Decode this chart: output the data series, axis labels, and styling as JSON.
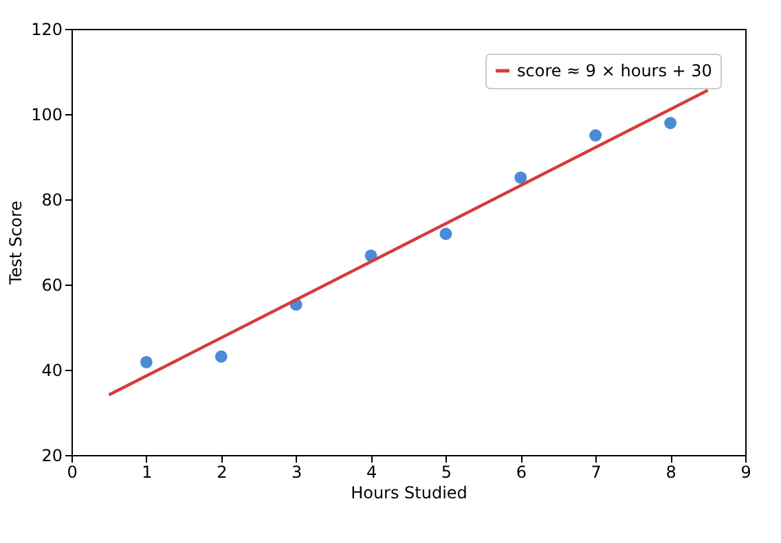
{
  "chart_data": {
    "type": "scatter",
    "xlabel": "Hours Studied",
    "ylabel": "Test Score",
    "series": [
      {
        "color": "#4a8ad6",
        "x": [
          1,
          2,
          3,
          4,
          5,
          6,
          7,
          8
        ],
        "values": [
          41.8,
          43.1,
          55.3,
          66.8,
          71.9,
          85.1,
          95,
          97.9
        ],
        "marker": "circle"
      },
      {
        "type": "line",
        "name": "score ≈ 9 × hours + 30",
        "color": "#d63b3b",
        "x": [
          0.5,
          8.5
        ],
        "values": [
          34.1,
          105.6
        ],
        "line_style": "solid"
      }
    ],
    "xlim": [
      0,
      9
    ],
    "xticks": [
      0,
      1,
      2,
      3,
      4,
      5,
      6,
      7,
      8,
      9
    ],
    "ylim": [
      20,
      120
    ],
    "yticks": [
      20,
      40,
      60,
      80,
      100,
      120
    ],
    "grid": false,
    "legend": "top right"
  }
}
